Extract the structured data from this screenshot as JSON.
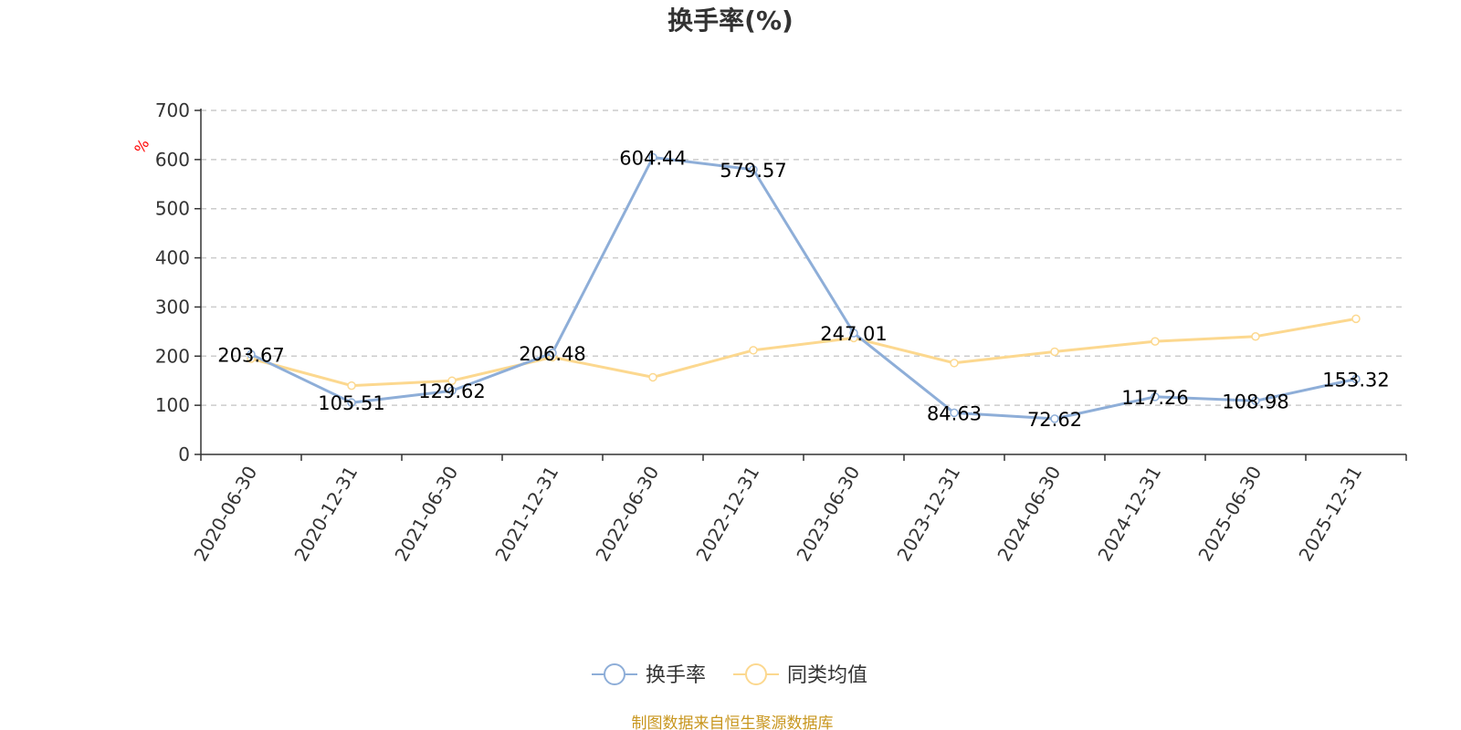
{
  "chart_data": {
    "type": "line",
    "title": "换手率(%)",
    "ylabel": "%",
    "xlabel": "",
    "ylim": [
      0,
      700
    ],
    "yticks": [
      0,
      100,
      200,
      300,
      400,
      500,
      600,
      700
    ],
    "grid": true,
    "legend_position": "bottom",
    "categories": [
      "2020-06-30",
      "2020-12-31",
      "2021-06-30",
      "2021-12-31",
      "2022-06-30",
      "2022-12-31",
      "2023-06-30",
      "2023-12-31",
      "2024-06-30",
      "2024-12-31",
      "2025-06-30",
      "2025-12-31"
    ],
    "series": [
      {
        "name": "换手率",
        "color": "#8eaed8",
        "values": [
          203.67,
          105.51,
          129.62,
          206.48,
          604.44,
          579.57,
          247.01,
          84.63,
          72.62,
          117.26,
          108.98,
          153.32
        ],
        "labels": [
          "203.67",
          "105.51",
          "129.62",
          "206.48",
          "604.44",
          "579.57",
          "247.01",
          "84.63",
          "72.62",
          "117.26",
          "108.98",
          "153.32"
        ]
      },
      {
        "name": "同类均值",
        "color": "#fcd88f",
        "values": [
          195,
          140,
          150,
          198,
          157,
          212,
          237,
          186,
          209,
          230,
          240,
          276
        ]
      }
    ],
    "source": "制图数据来自恒生聚源数据库"
  }
}
